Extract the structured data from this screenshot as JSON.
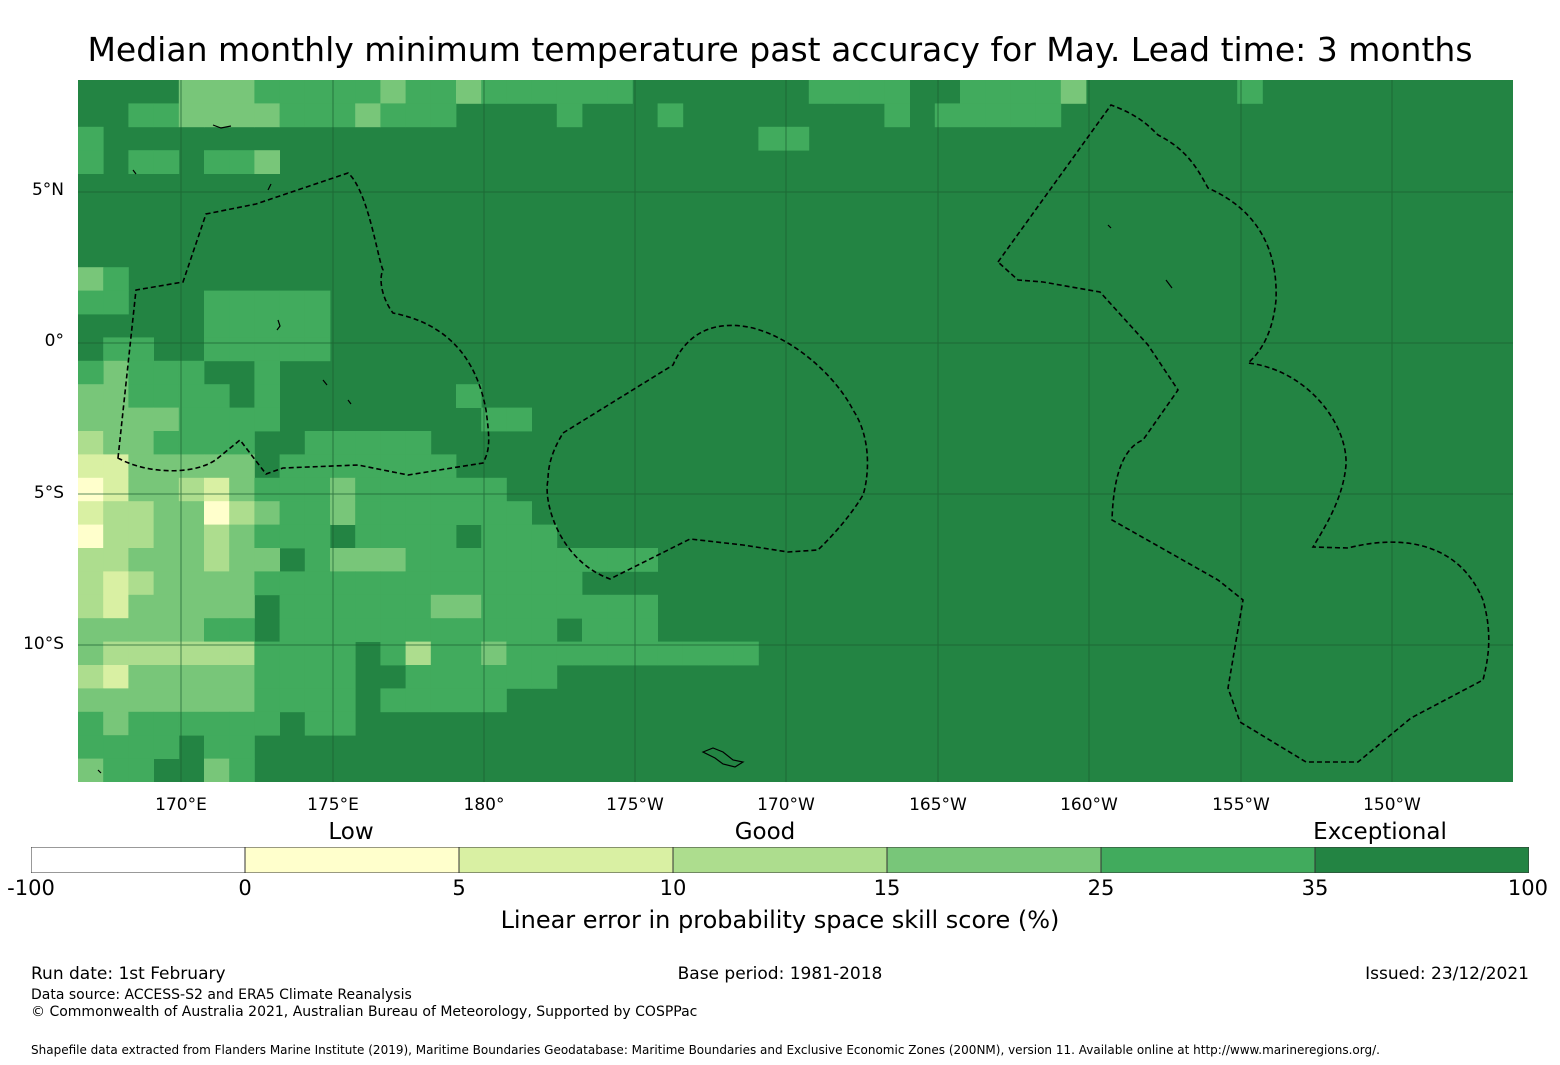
{
  "title": "Median monthly minimum temperature past accuracy for May. Lead time: 3 months",
  "lat_labels": [
    "5°N",
    "0°",
    "5°S",
    "10°S"
  ],
  "lon_labels": [
    "170°E",
    "175°E",
    "180°",
    "175°W",
    "170°W",
    "165°W",
    "160°W",
    "155°W",
    "150°W"
  ],
  "legend": {
    "categories": [
      "Low",
      "Good",
      "Exceptional"
    ],
    "ticks": [
      "-100",
      "0",
      "5",
      "10",
      "15",
      "25",
      "35",
      "100"
    ],
    "colors": [
      "#ffffff",
      "#ffffcc",
      "#d9f0a3",
      "#addd8e",
      "#78c679",
      "#41ab5d",
      "#238443"
    ],
    "label": "Linear error in probability space skill score (%)"
  },
  "footer": {
    "run_date": "Run date: 1st February",
    "base_period": "Base period: 1981-2018",
    "issued": "Issued: 23/12/2021",
    "data_source": "Data source: ACCESS-S2 and ERA5 Climate Reanalysis",
    "copyright": "© Commonwealth of Australia 2021, Australian Bureau of Meteorology, Supported by COSPPac",
    "shapefile": "Shapefile data extracted from Flanders Marine Institute (2019), Maritime Boundaries Geodatabase: Maritime Boundaries and Exclusive Economic Zones (200NM), version 11. Available online at http://www.marineregions.org/."
  }
}
